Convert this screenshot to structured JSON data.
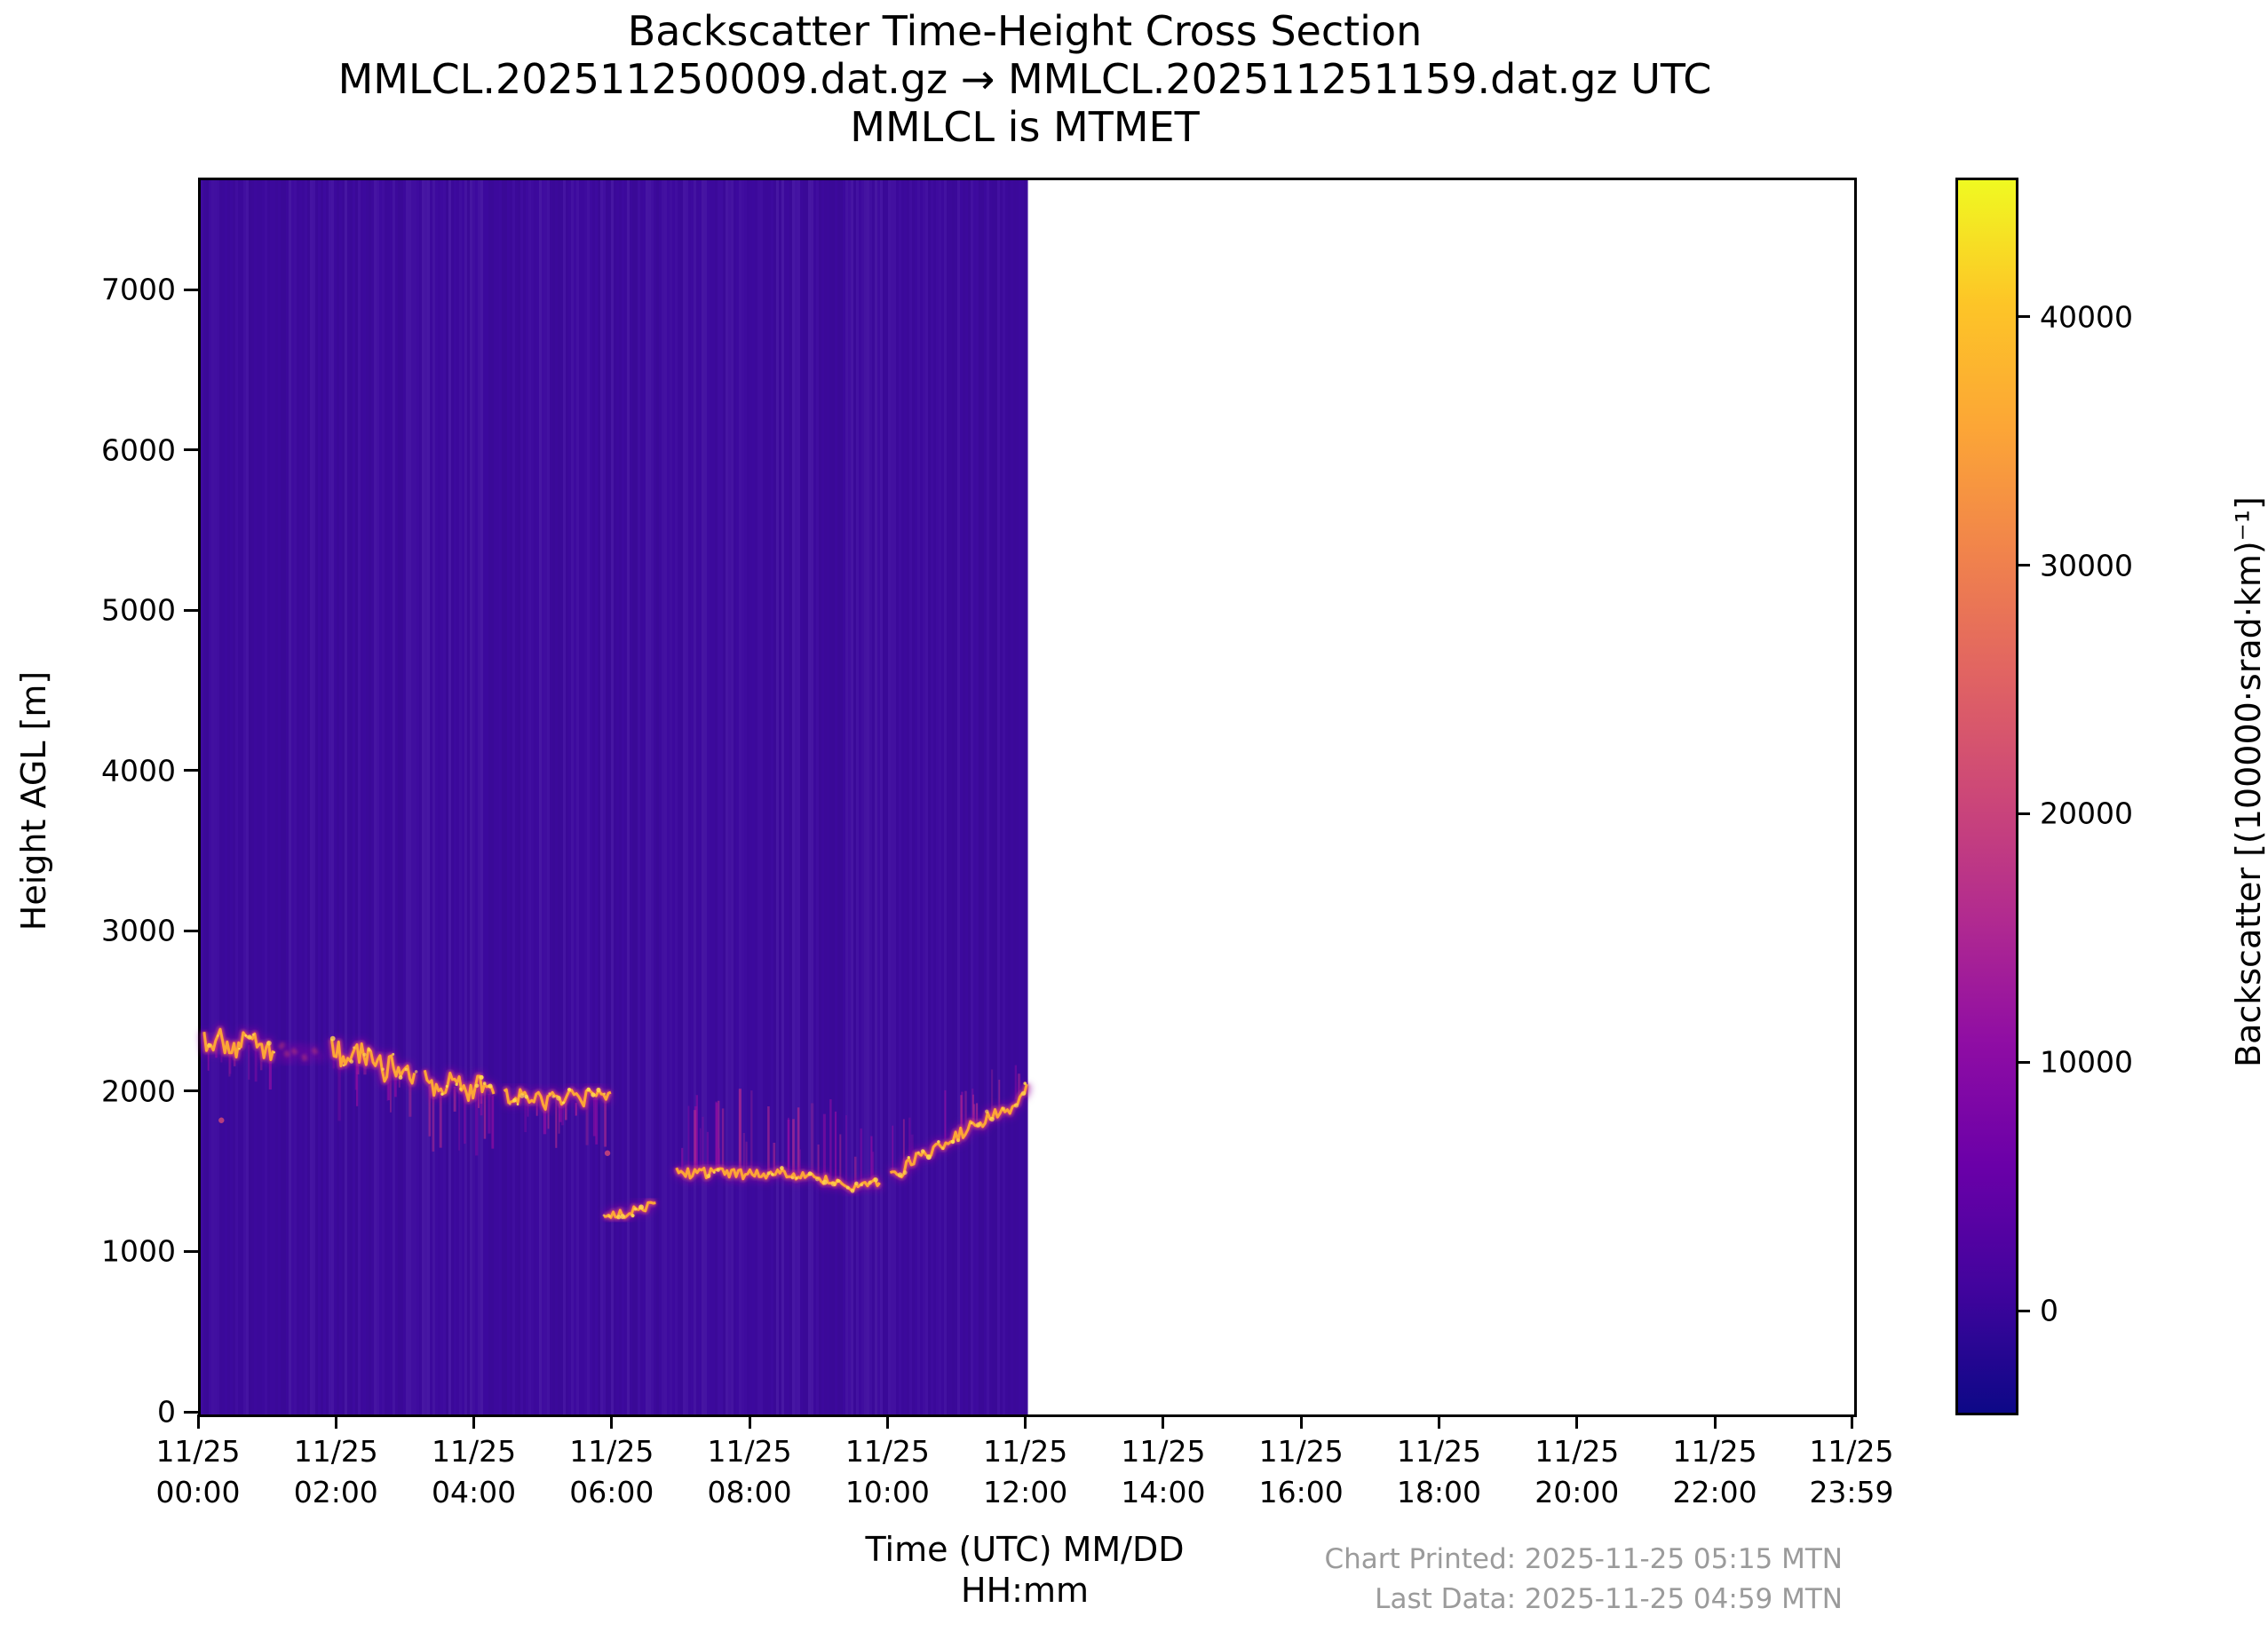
{
  "title": {
    "line1": "Backscatter Time-Height Cross Section",
    "line2": "MMLCL.202511250009.dat.gz → MMLCL.202511251159.dat.gz UTC",
    "line3": "MMLCL is MTMET"
  },
  "axes": {
    "ylabel": "Height AGL [m]",
    "xlabel_line1": "Time (UTC) MM/DD",
    "xlabel_line2": "HH:mm",
    "y_ticks": [
      7000,
      6000,
      5000,
      4000,
      3000,
      2000,
      1000,
      0
    ],
    "x_ticks": [
      {
        "date": "11/25",
        "time": "00:00",
        "hours": 0
      },
      {
        "date": "11/25",
        "time": "02:00",
        "hours": 2
      },
      {
        "date": "11/25",
        "time": "04:00",
        "hours": 4
      },
      {
        "date": "11/25",
        "time": "06:00",
        "hours": 6
      },
      {
        "date": "11/25",
        "time": "08:00",
        "hours": 8
      },
      {
        "date": "11/25",
        "time": "10:00",
        "hours": 10
      },
      {
        "date": "11/25",
        "time": "12:00",
        "hours": 12
      },
      {
        "date": "11/25",
        "time": "14:00",
        "hours": 14
      },
      {
        "date": "11/25",
        "time": "16:00",
        "hours": 16
      },
      {
        "date": "11/25",
        "time": "18:00",
        "hours": 18
      },
      {
        "date": "11/25",
        "time": "20:00",
        "hours": 20
      },
      {
        "date": "11/25",
        "time": "22:00",
        "hours": 22
      },
      {
        "date": "11/25",
        "time": "23:59",
        "hours": 23.983
      }
    ]
  },
  "colorbar": {
    "label": "Backscatter [(100000·srad·km)⁻¹]",
    "ticks": [
      40000,
      30000,
      20000,
      10000,
      0
    ],
    "value_min": -4000,
    "value_max": 45600,
    "palette_name": "plasma",
    "palette": [
      "#0d0887",
      "#41049d",
      "#6a00a8",
      "#8f0da4",
      "#b12a90",
      "#cc4778",
      "#e16462",
      "#f1844b",
      "#fca636",
      "#fdc527",
      "#f0f921"
    ]
  },
  "footer": {
    "printed": "Chart Printed: 2025-11-25 05:15 MTN",
    "last_data": "Last Data: 2025-11-25 04:59 MTN"
  },
  "chart_data": {
    "type": "heatmap",
    "title": "Backscatter Time-Height Cross Section",
    "xlabel": "Time (UTC) MM/DD HH:mm",
    "ylabel": "Height AGL [m]",
    "x_range_hours_utc": [
      0,
      23.983
    ],
    "x_tick_step_hours": 2,
    "y_range_m": [
      0,
      7700
    ],
    "y_tick_step_m": 1000,
    "data_coverage_hours_utc": [
      0.15,
      12.0
    ],
    "no_data_region_hours_utc": [
      12.0,
      23.983
    ],
    "background_value_color": "#3d0a9e",
    "no_data_color": "#ffffff",
    "colorbar_range": [
      -4000,
      45600
    ],
    "cloud_base_series": {
      "units": {
        "time": "hours UTC on 11/25",
        "height": "m AGL"
      },
      "segments": [
        {
          "name": "layer-2300m",
          "jitter_m": 75,
          "points": [
            [
              0.05,
              2320
            ],
            [
              0.25,
              2345
            ],
            [
              0.45,
              2290
            ],
            [
              0.65,
              2330
            ],
            [
              0.85,
              2300
            ],
            [
              1.05,
              2270
            ]
          ]
        },
        {
          "name": "sparse-gap",
          "dim": true,
          "jitter_m": 55,
          "points": [
            [
              1.15,
              2280
            ],
            [
              1.45,
              2255
            ],
            [
              1.75,
              2250
            ]
          ]
        },
        {
          "name": "layer-2200m",
          "jitter_m": 80,
          "points": [
            [
              1.9,
              2270
            ],
            [
              2.1,
              2230
            ],
            [
              2.3,
              2260
            ],
            [
              2.5,
              2190
            ],
            [
              2.7,
              2150
            ],
            [
              2.9,
              2185
            ],
            [
              3.1,
              2130
            ]
          ]
        },
        {
          "name": "layer-2050m",
          "jitter_m": 70,
          "points": [
            [
              3.25,
              2080
            ],
            [
              3.45,
              2040
            ],
            [
              3.65,
              2070
            ],
            [
              3.85,
              2020
            ],
            [
              4.05,
              2055
            ],
            [
              4.25,
              2000
            ]
          ]
        },
        {
          "name": "layer-2000m",
          "jitter_m": 55,
          "points": [
            [
              4.4,
              2010
            ],
            [
              4.6,
              1975
            ],
            [
              4.8,
              2005
            ],
            [
              5.0,
              1950
            ],
            [
              5.2,
              1995
            ],
            [
              5.45,
              1960
            ],
            [
              5.7,
              1985
            ],
            [
              5.95,
              2010
            ]
          ]
        },
        {
          "name": "low-layer-1270m",
          "jitter_m": 28,
          "points": [
            [
              5.85,
              1255
            ],
            [
              6.05,
              1245
            ],
            [
              6.25,
              1265
            ],
            [
              6.45,
              1295
            ],
            [
              6.6,
              1320
            ]
          ]
        },
        {
          "name": "layer-1500m",
          "jitter_m": 32,
          "points": [
            [
              6.9,
              1510
            ],
            [
              7.2,
              1500
            ],
            [
              7.5,
              1515
            ],
            [
              7.8,
              1495
            ],
            [
              8.1,
              1505
            ],
            [
              8.4,
              1500
            ],
            [
              8.7,
              1490
            ],
            [
              9.0,
              1470
            ],
            [
              9.3,
              1430
            ],
            [
              9.6,
              1420
            ],
            [
              9.85,
              1445
            ]
          ]
        },
        {
          "name": "rising-to-2050m",
          "jitter_m": 42,
          "points": [
            [
              10.0,
              1470
            ],
            [
              10.2,
              1530
            ],
            [
              10.45,
              1610
            ],
            [
              10.7,
              1680
            ],
            [
              10.95,
              1740
            ],
            [
              11.2,
              1800
            ],
            [
              11.45,
              1850
            ],
            [
              11.7,
              1905
            ],
            [
              11.85,
              1960
            ],
            [
              11.98,
              2060
            ]
          ]
        }
      ],
      "isolated_echoes": [
        {
          "time": 0.3,
          "height_m": 1835
        },
        {
          "time": 5.9,
          "height_m": 1630
        }
      ]
    }
  }
}
